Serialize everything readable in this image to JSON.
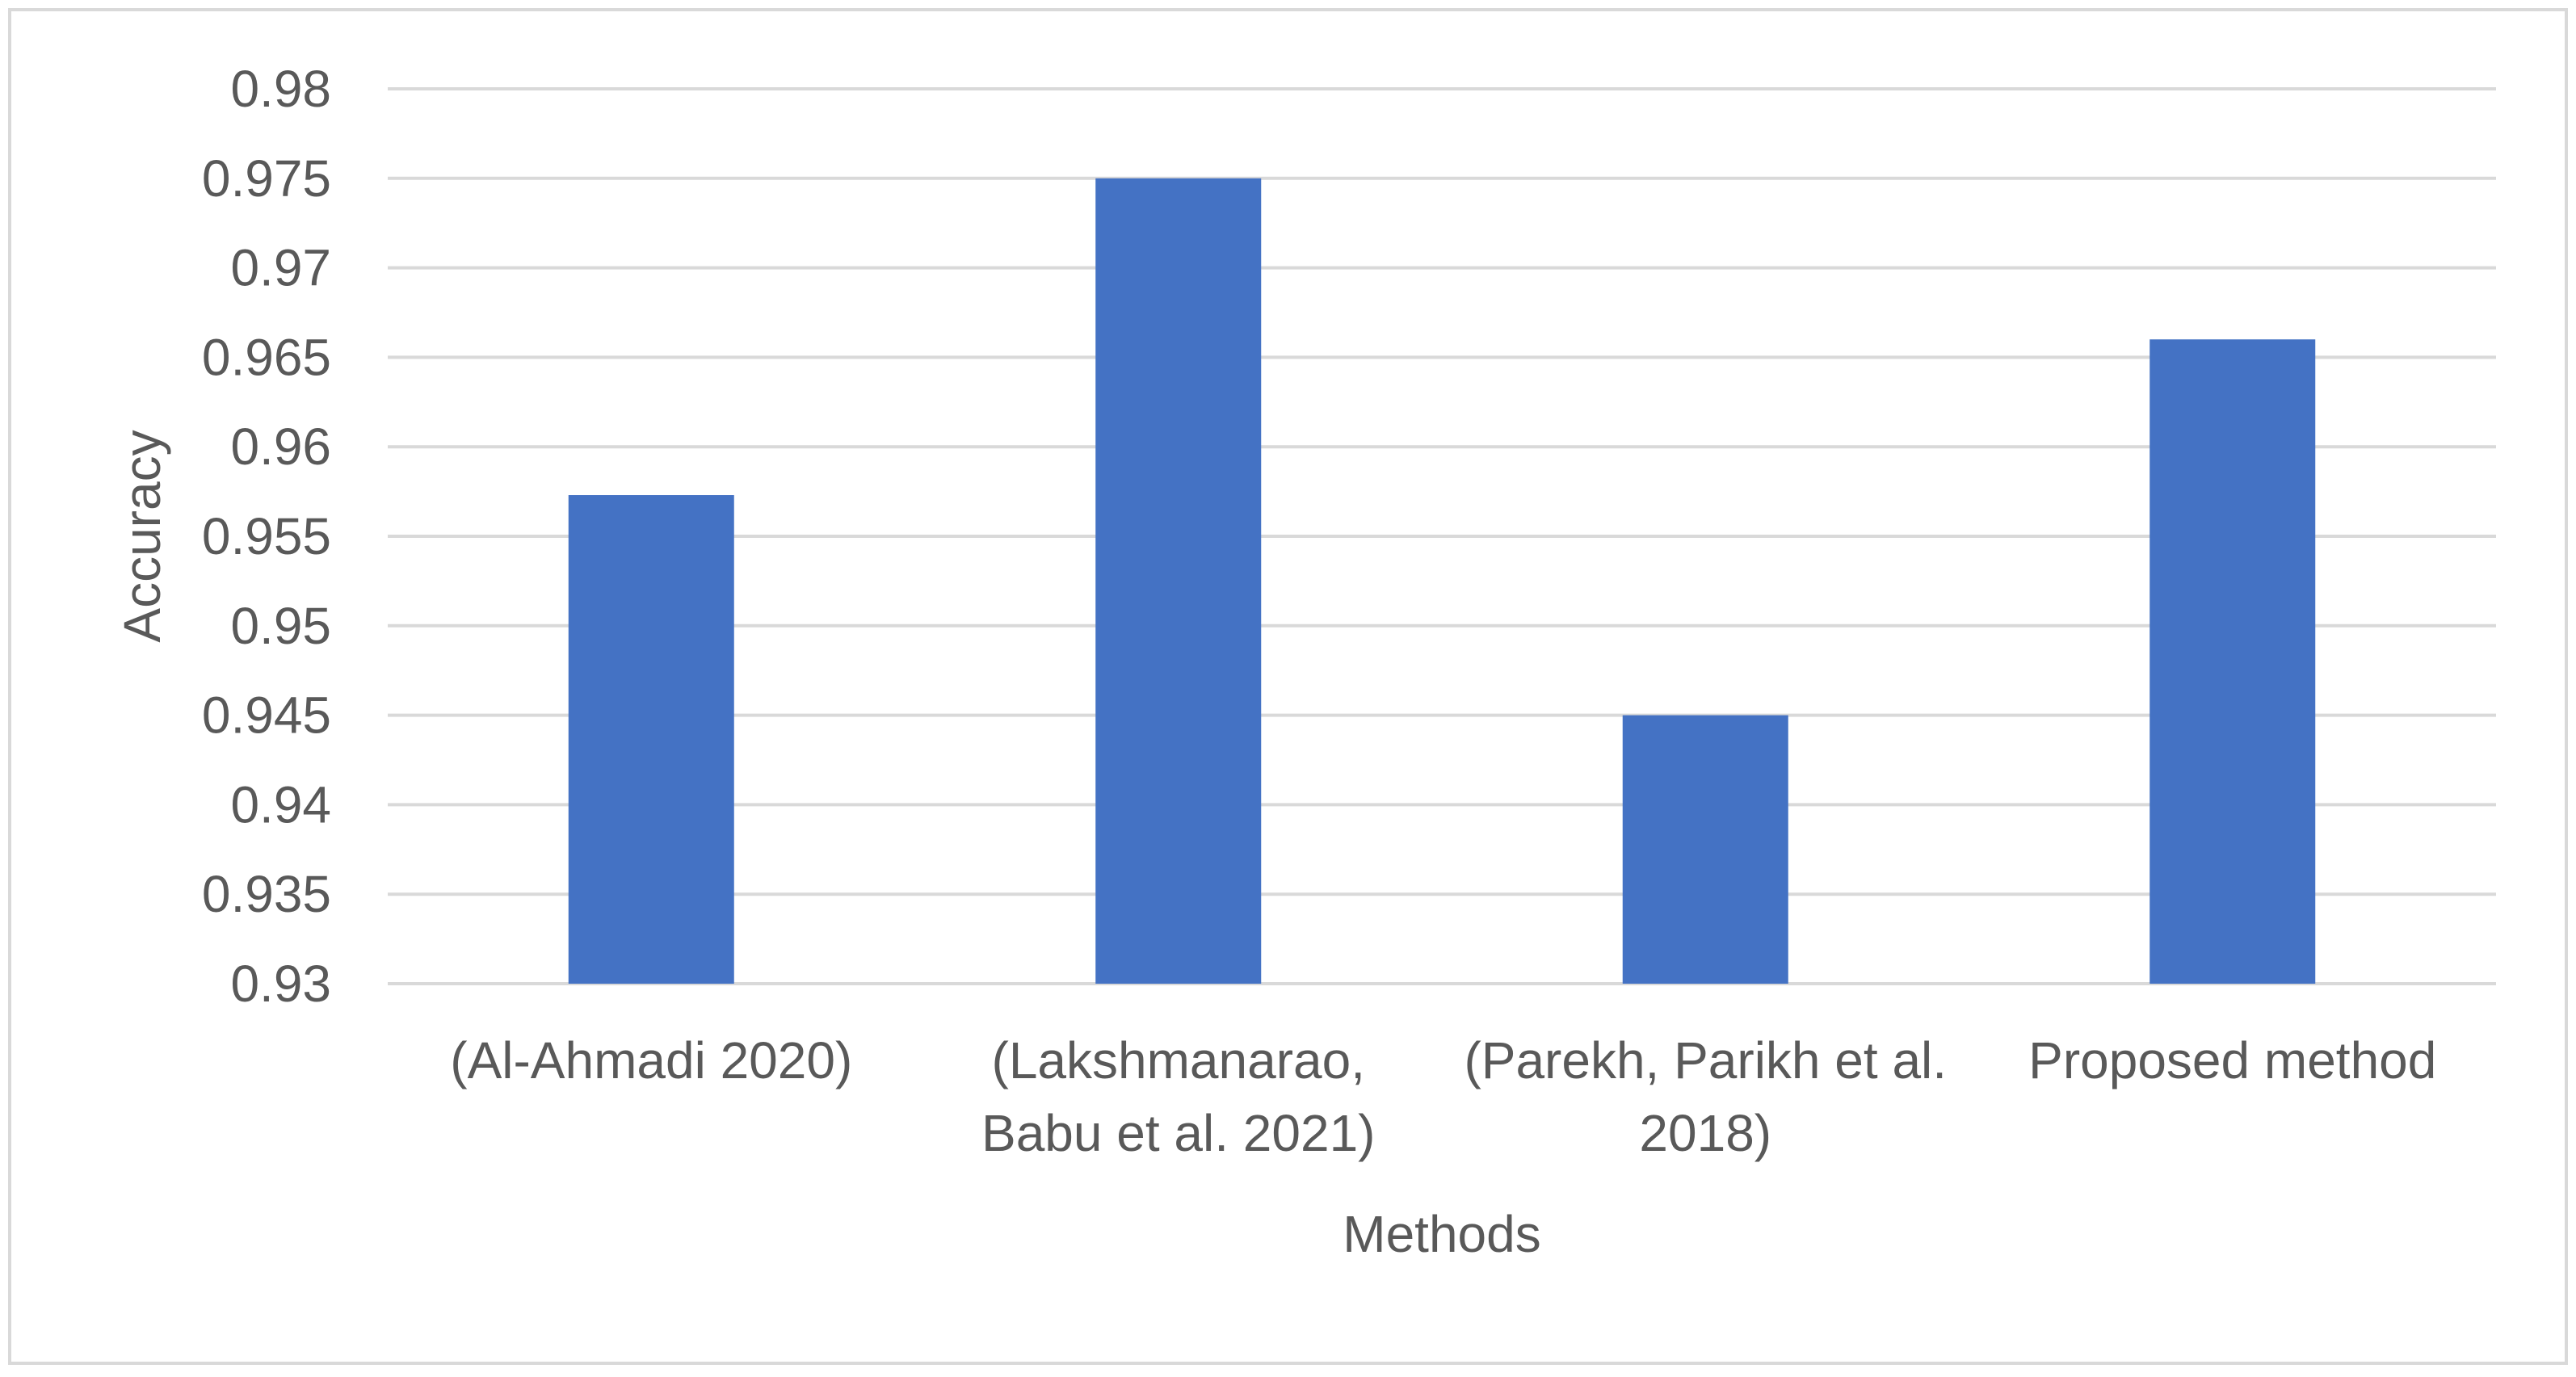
{
  "chart_data": {
    "type": "bar",
    "title": "",
    "xlabel": "Methods",
    "ylabel": "Accuracy",
    "ylim": [
      0.93,
      0.98
    ],
    "yticks": [
      "0.93",
      "0.935",
      "0.94",
      "0.945",
      "0.95",
      "0.955",
      "0.96",
      "0.965",
      "0.97",
      "0.975",
      "0.98"
    ],
    "categories": [
      [
        "(Al-Ahmadi 2020)"
      ],
      [
        "(Lakshmanarao,",
        "Babu et al. 2021)"
      ],
      [
        "(Parekh, Parikh et al.",
        "2018)"
      ],
      [
        "Proposed method"
      ]
    ],
    "values": [
      0.9573,
      0.975,
      0.945,
      0.966
    ],
    "grid": true,
    "legend": "none",
    "colors": {
      "bar": "#4472C4",
      "grid": "#D9D9D9",
      "text": "#595959",
      "border": "#D9D9D9"
    }
  }
}
